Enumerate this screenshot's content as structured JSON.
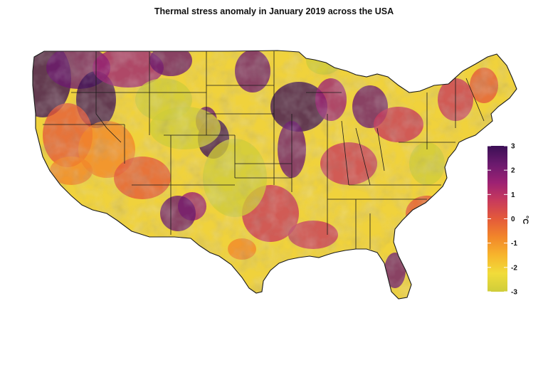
{
  "title": "Thermal stress anomaly in January 2019 across the USA",
  "colorbar": {
    "unit": "°C",
    "min": -3,
    "max": 3,
    "ticks": [
      {
        "value": 3,
        "label": "3"
      },
      {
        "value": 2,
        "label": "2"
      },
      {
        "value": 1,
        "label": "1"
      },
      {
        "value": 0,
        "label": "0"
      },
      {
        "value": -1,
        "label": "-1"
      },
      {
        "value": -2,
        "label": "-2"
      },
      {
        "value": -3,
        "label": "-3"
      }
    ],
    "colors": [
      "#3b0f55",
      "#6b1a6e",
      "#9c2173",
      "#c83a5c",
      "#e45a3a",
      "#f2862a",
      "#f7b52c",
      "#f1dc3a",
      "#cfcd3a"
    ]
  },
  "palette": {
    "background": "#ffffff",
    "land_base": "#f0d23c",
    "state_border": "#1a1a1a"
  }
}
